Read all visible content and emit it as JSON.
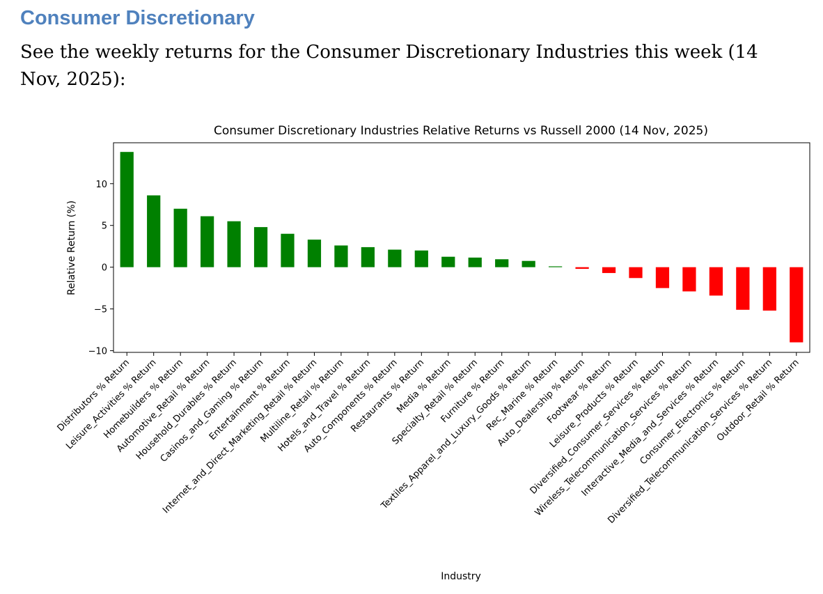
{
  "heading": "Consumer Discretionary",
  "intro": "See the weekly returns for the Consumer Discretionary Industries this week (14 Nov, 2025):",
  "chart_data": {
    "type": "bar",
    "title": "Consumer Discretionary Industries Relative Returns vs Russell 2000 (14 Nov, 2025)",
    "xlabel": "Industry",
    "ylabel": "Relative Return (%)",
    "ylim": [
      -10.2,
      14.9
    ],
    "yticks": [
      -10,
      -5,
      0,
      5,
      10
    ],
    "positive_color": "#008000",
    "negative_color": "#ff0000",
    "categories": [
      "Distributors % Return",
      "Leisure_Activities % Return",
      "Homebuilders % Return",
      "Automotive_Retail % Return",
      "Household_Durables % Return",
      "Casinos_and_Gaming % Return",
      "Entertainment % Return",
      "Internet_and_Direct_Marketing_Retail % Return",
      "Multiline_Retail % Return",
      "Hotels_and_Travel % Return",
      "Auto_Components % Return",
      "Restaurants % Return",
      "Media % Return",
      "Specialty_Retail % Return",
      "Furniture % Return",
      "Textiles_Apparel_and_Luxury_Goods % Return",
      "Rec_Marine % Return",
      "Auto_Dealership % Return",
      "Footwear % Return",
      "Leisure_Products % Return",
      "Diversified_Consumer_Services % Return",
      "Wireless_Telecommunication_Services % Return",
      "Interactive_Media_and_Services % Return",
      "Consumer_Electronics % Return",
      "Diversified_Telecommunication_Services % Return",
      "Outdoor_Retail % Return"
    ],
    "values": [
      13.8,
      8.6,
      7.0,
      6.1,
      5.5,
      4.8,
      4.0,
      3.3,
      2.6,
      2.4,
      2.1,
      2.0,
      1.25,
      1.15,
      0.95,
      0.75,
      0.1,
      -0.2,
      -0.7,
      -1.3,
      -2.5,
      -2.9,
      -3.4,
      -5.1,
      -5.2,
      -9.0
    ]
  }
}
